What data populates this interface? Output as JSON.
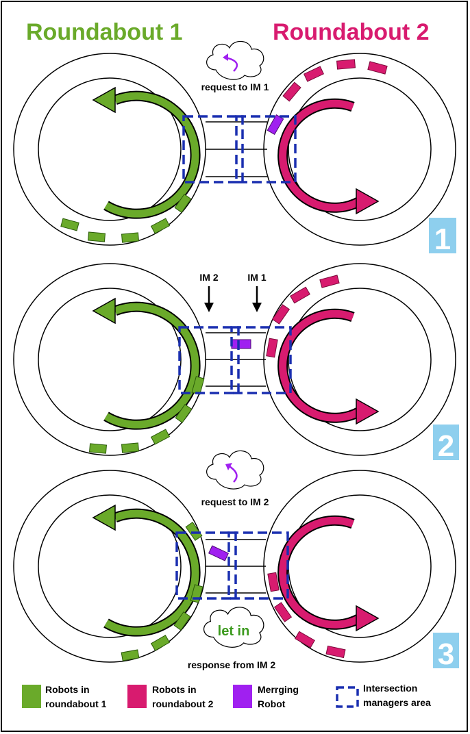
{
  "titles": {
    "left": "Roundabout 1",
    "right": "Roundabout 2"
  },
  "panels": [
    {
      "number": "1",
      "cloud_caption": "request to IM 1"
    },
    {
      "number": "2",
      "im_labels": [
        "IM 2",
        "IM 1"
      ]
    },
    {
      "number": "3",
      "cloud_caption": "request to IM 2",
      "cloud2_text": "let in",
      "cloud2_caption": "response from IM 2"
    }
  ],
  "legend": [
    {
      "line1": "Robots in",
      "line2": "roundabout 1",
      "color": "#6aaa2a"
    },
    {
      "line1": "Robots in",
      "line2": "roundabout 2",
      "color": "#d81b6f"
    },
    {
      "line1": "Merrging",
      "line2": "Robot",
      "color": "#a020f0"
    },
    {
      "line1": "Intersection",
      "line2": "managers area",
      "color": "#1a2fb0"
    }
  ],
  "colors": {
    "green": "#6aaa2a",
    "magenta": "#d81b6f",
    "purple": "#a020f0",
    "blue": "#1a2fb0",
    "badge": "#8ecfee"
  }
}
